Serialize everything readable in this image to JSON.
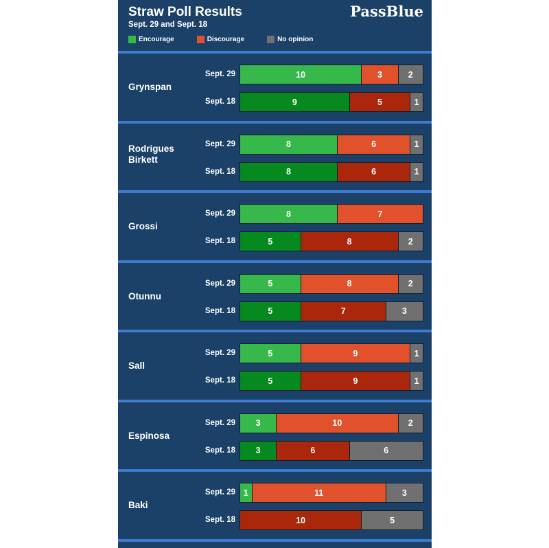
{
  "header": {
    "title": "Straw Poll Results",
    "subtitle": "Sept. 29 and Sept. 18",
    "brand": "PassBlue"
  },
  "legend": [
    {
      "label": "Encourage",
      "color": "#36b84a"
    },
    {
      "label": "Discourage",
      "color": "#e0512c"
    },
    {
      "label": "No opinion",
      "color": "#707070"
    }
  ],
  "colors": {
    "panel_bg": "#1b4168",
    "separator": "#3e7ad0",
    "encourage_sept29": "#36b84a",
    "encourage_sept18": "#068a1f",
    "discourage_sept29": "#e0512c",
    "discourage_sept18": "#aa270b",
    "no_opinion": "#707070"
  },
  "chart_data": {
    "type": "bar",
    "orientation": "horizontal",
    "stacked": true,
    "title": "Straw Poll Results",
    "subtitle": "Sept. 29 and Sept. 18",
    "legend_labels": [
      "Encourage",
      "Discourage",
      "No opinion"
    ],
    "xlim": [
      0,
      15
    ],
    "rows": [
      "Sept. 29",
      "Sept. 18"
    ],
    "candidates": [
      {
        "name": "Grynspan",
        "polls": [
          {
            "date": "Sept. 29",
            "encourage": 10,
            "discourage": 3,
            "no_opinion": 2
          },
          {
            "date": "Sept. 18",
            "encourage": 9,
            "discourage": 5,
            "no_opinion": 1
          }
        ]
      },
      {
        "name": "Rodrigues Birkett",
        "polls": [
          {
            "date": "Sept. 29",
            "encourage": 8,
            "discourage": 6,
            "no_opinion": 1
          },
          {
            "date": "Sept. 18",
            "encourage": 8,
            "discourage": 6,
            "no_opinion": 1
          }
        ]
      },
      {
        "name": "Grossi",
        "polls": [
          {
            "date": "Sept. 29",
            "encourage": 8,
            "discourage": 7,
            "no_opinion": 0
          },
          {
            "date": "Sept. 18",
            "encourage": 5,
            "discourage": 8,
            "no_opinion": 2
          }
        ]
      },
      {
        "name": "Otunnu",
        "polls": [
          {
            "date": "Sept. 29",
            "encourage": 5,
            "discourage": 8,
            "no_opinion": 2
          },
          {
            "date": "Sept. 18",
            "encourage": 5,
            "discourage": 7,
            "no_opinion": 3
          }
        ]
      },
      {
        "name": "Sall",
        "polls": [
          {
            "date": "Sept. 29",
            "encourage": 5,
            "discourage": 9,
            "no_opinion": 1
          },
          {
            "date": "Sept. 18",
            "encourage": 5,
            "discourage": 9,
            "no_opinion": 1
          }
        ]
      },
      {
        "name": "Espinosa",
        "polls": [
          {
            "date": "Sept. 29",
            "encourage": 3,
            "discourage": 10,
            "no_opinion": 2
          },
          {
            "date": "Sept. 18",
            "encourage": 3,
            "discourage": 6,
            "no_opinion": 6
          }
        ]
      },
      {
        "name": "Baki",
        "polls": [
          {
            "date": "Sept. 29",
            "encourage": 1,
            "discourage": 11,
            "no_opinion": 3
          },
          {
            "date": "Sept. 18",
            "encourage": 0,
            "discourage": 10,
            "no_opinion": 5
          }
        ]
      }
    ]
  }
}
